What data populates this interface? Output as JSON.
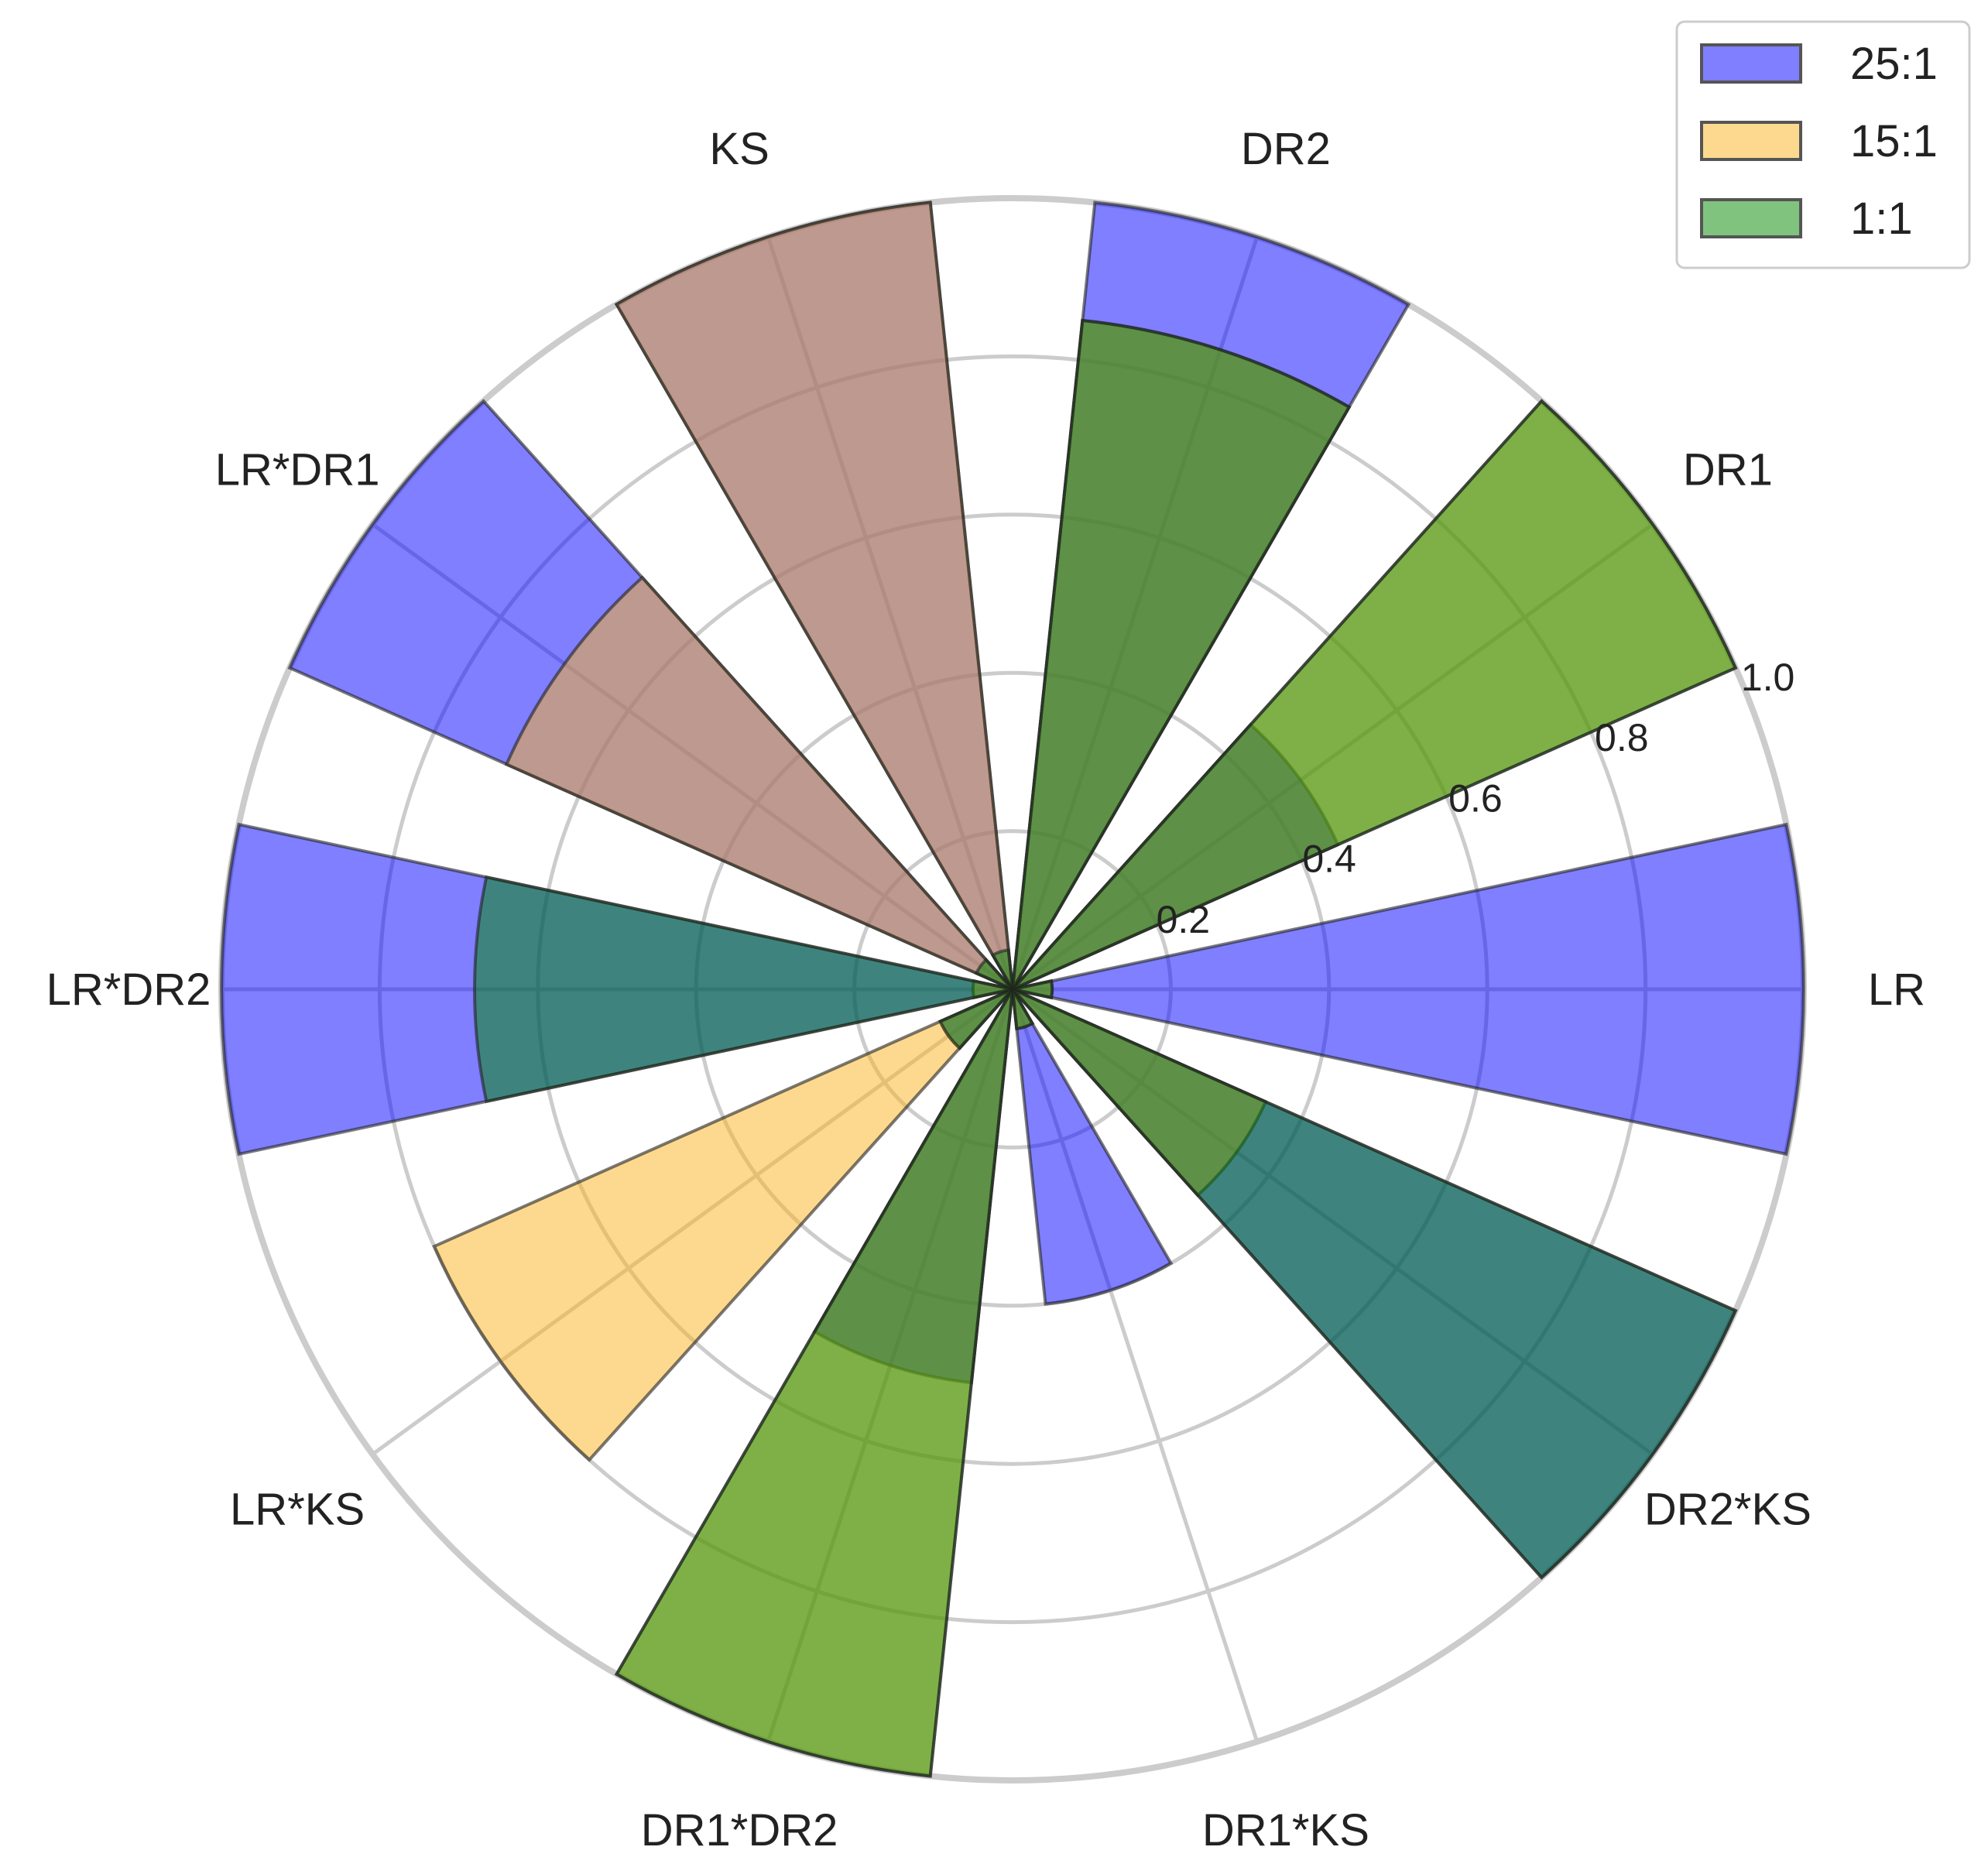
{
  "chart_data": {
    "type": "polar-bar",
    "categories": [
      "LR",
      "DR1",
      "DR2",
      "KS",
      "LR*DR1",
      "LR*DR2",
      "LR*KS",
      "DR1*DR2",
      "DR1*KS",
      "DR2*KS"
    ],
    "series": [
      {
        "name": "25:1",
        "color": "#0000ff",
        "values": [
          1.0,
          0.45,
          1.0,
          1.0,
          1.0,
          1.0,
          0.1,
          0.5,
          0.4,
          1.0
        ]
      },
      {
        "name": "15:1",
        "color": "#fbb31f",
        "values": [
          0.05,
          1.0,
          0.85,
          1.0,
          0.7,
          0.05,
          0.8,
          1.0,
          0.05,
          0.35
        ]
      },
      {
        "name": "1:1",
        "color": "#008800",
        "values": [
          0.05,
          1.0,
          0.85,
          0.05,
          0.05,
          0.68,
          0.1,
          1.0,
          0.05,
          1.0
        ]
      }
    ],
    "radial_ticks": [
      "0.2",
      "0.4",
      "0.6",
      "0.8",
      "1.0"
    ],
    "rlim": [
      0,
      1.0
    ],
    "legend": {
      "position": "top-right",
      "entries": [
        "25:1",
        "15:1",
        "1:1"
      ]
    }
  }
}
